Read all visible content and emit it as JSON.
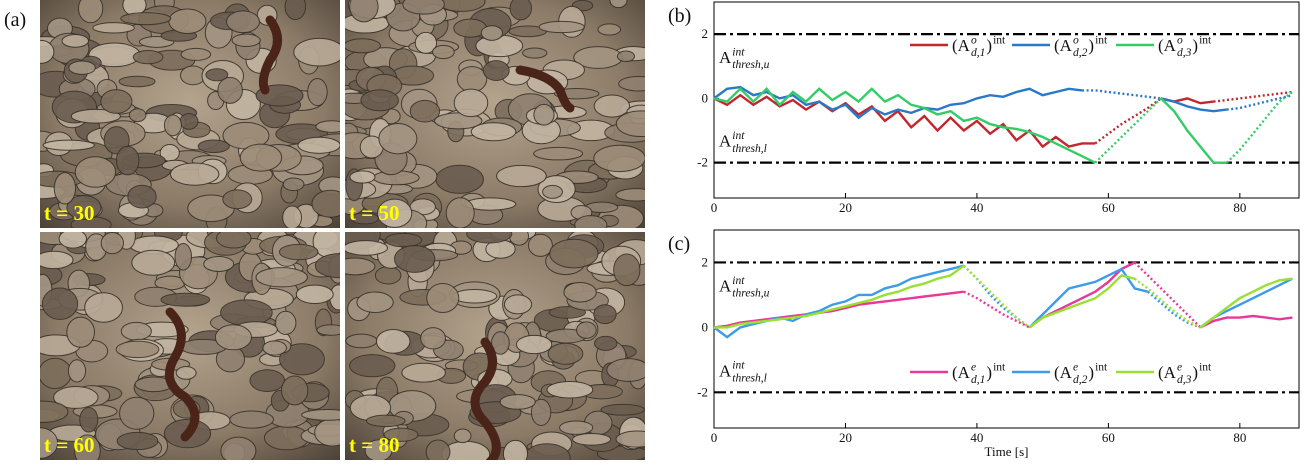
{
  "figure": {
    "label": "(a)",
    "frames": [
      "t = 30",
      "t = 50",
      "t = 60",
      "t = 80"
    ]
  },
  "chart_data": [
    {
      "type": "line",
      "panel": "(b)",
      "legend": "upper right",
      "xlim": [
        0,
        89
      ],
      "ylim": [
        -3.1,
        3
      ],
      "xticks": [
        0,
        20,
        40,
        60,
        80
      ],
      "yticks": [
        -2,
        0,
        2
      ],
      "thresholds": [
        2,
        -2
      ],
      "annotations": [
        {
          "base": "A",
          "sup": "int",
          "sub": "thresh,u"
        },
        {
          "base": "A",
          "sup": "int",
          "sub": "thresh,l"
        }
      ],
      "x": [
        0,
        2,
        4,
        6,
        8,
        10,
        12,
        14,
        16,
        18,
        20,
        22,
        24,
        26,
        28,
        30,
        32,
        34,
        36,
        38,
        40,
        42,
        44,
        46,
        48,
        50,
        52,
        54,
        56,
        58,
        60,
        62,
        64,
        66,
        68,
        70,
        72,
        74,
        76,
        78,
        80,
        82,
        84,
        86,
        88
      ],
      "series": [
        {
          "name": [
            "(A",
            "o",
            "d,1",
            ")",
            "int"
          ],
          "color": "#c1272d",
          "values": [
            0,
            -0.2,
            0.1,
            -0.2,
            0.05,
            -0.25,
            -0.05,
            -0.35,
            -0.1,
            -0.4,
            -0.15,
            -0.5,
            -0.25,
            -0.7,
            -0.4,
            -0.9,
            -0.55,
            -1.0,
            -0.6,
            -1.0,
            -0.7,
            -1.1,
            -0.8,
            -1.3,
            -1.0,
            -1.5,
            -1.2,
            -1.5,
            -1.4,
            -1.4,
            null,
            null,
            null,
            null,
            0,
            -0.1,
            0,
            -0.15,
            -0.1,
            null,
            null,
            null,
            null,
            null,
            null
          ],
          "interp_values": [
            null,
            null,
            null,
            null,
            null,
            null,
            null,
            null,
            null,
            null,
            null,
            null,
            null,
            null,
            null,
            null,
            null,
            null,
            null,
            null,
            null,
            null,
            null,
            null,
            null,
            null,
            null,
            null,
            null,
            -1.4,
            -1.1,
            -0.8,
            -0.55,
            -0.3,
            0,
            null,
            null,
            null,
            -0.1,
            -0.05,
            0,
            0.05,
            0.1,
            0.15,
            0.2
          ]
        },
        {
          "name": [
            "(A",
            "o",
            "d,2",
            ")",
            "int"
          ],
          "color": "#2a78c8",
          "values": [
            0,
            0.3,
            0.35,
            0.1,
            0.2,
            0,
            0.1,
            -0.2,
            -0.1,
            -0.35,
            -0.2,
            -0.6,
            -0.3,
            -0.5,
            -0.35,
            -0.45,
            -0.3,
            -0.35,
            -0.2,
            -0.15,
            0,
            0.1,
            0.05,
            0.2,
            0.3,
            0.1,
            0.2,
            0.3,
            0.25,
            null,
            null,
            null,
            null,
            null,
            0,
            -0.1,
            -0.25,
            -0.35,
            -0.4,
            -0.35,
            null,
            null,
            null,
            null,
            null
          ],
          "interp_values": [
            null,
            null,
            null,
            null,
            null,
            null,
            null,
            null,
            null,
            null,
            null,
            null,
            null,
            null,
            null,
            null,
            null,
            null,
            null,
            null,
            null,
            null,
            null,
            null,
            null,
            null,
            null,
            null,
            0.25,
            0.25,
            0.2,
            0.15,
            0.1,
            0.05,
            0,
            null,
            null,
            null,
            null,
            -0.35,
            -0.3,
            -0.2,
            -0.1,
            0,
            0.1
          ]
        },
        {
          "name": [
            "(A",
            "o",
            "d,3",
            ")",
            "int"
          ],
          "color": "#33cc66",
          "values": [
            0,
            -0.1,
            0.3,
            -0.1,
            0.3,
            -0.2,
            0.2,
            -0.1,
            0.3,
            -0.05,
            0.2,
            -0.1,
            0.3,
            -0.1,
            0.1,
            -0.2,
            -0.3,
            -0.5,
            -0.4,
            -0.7,
            -0.6,
            -0.8,
            -0.9,
            -0.95,
            -1.05,
            -1.2,
            -1.4,
            -1.6,
            -1.8,
            -2.0,
            null,
            null,
            null,
            null,
            0,
            -0.4,
            -1.0,
            -1.5,
            -2.0,
            -2.0,
            null,
            null,
            null,
            null,
            null
          ],
          "interp_values": [
            null,
            null,
            null,
            null,
            null,
            null,
            null,
            null,
            null,
            null,
            null,
            null,
            null,
            null,
            null,
            null,
            null,
            null,
            null,
            null,
            null,
            null,
            null,
            null,
            null,
            null,
            null,
            null,
            null,
            -2.0,
            -1.6,
            -1.2,
            -0.8,
            -0.4,
            0,
            null,
            null,
            null,
            null,
            -2.0,
            -1.6,
            -1.1,
            -0.6,
            -0.1,
            0.2
          ]
        }
      ]
    },
    {
      "type": "line",
      "panel": "(c)",
      "legend": "lower right",
      "xlabel": "Time [s]",
      "xlim": [
        0,
        89
      ],
      "ylim": [
        -3.1,
        3
      ],
      "xticks": [
        0,
        20,
        40,
        60,
        80
      ],
      "yticks": [
        -2,
        0,
        2
      ],
      "thresholds": [
        2,
        -2
      ],
      "annotations": [
        {
          "base": "A",
          "sup": "int",
          "sub": "thresh,u"
        },
        {
          "base": "A",
          "sup": "int",
          "sub": "thresh,l"
        }
      ],
      "x": [
        0,
        2,
        4,
        6,
        8,
        10,
        12,
        14,
        16,
        18,
        20,
        22,
        24,
        26,
        28,
        30,
        32,
        34,
        36,
        38,
        40,
        42,
        44,
        46,
        48,
        50,
        52,
        54,
        56,
        58,
        60,
        62,
        64,
        66,
        68,
        70,
        72,
        74,
        76,
        78,
        80,
        82,
        84,
        86,
        88
      ],
      "series": [
        {
          "name": [
            "(A",
            "e",
            "d,1",
            ")",
            "int"
          ],
          "color": "#e8399a",
          "values": [
            0,
            0.05,
            0.15,
            0.2,
            0.25,
            0.3,
            0.35,
            0.4,
            0.45,
            0.5,
            0.6,
            0.7,
            0.75,
            0.8,
            0.85,
            0.9,
            0.95,
            1.0,
            1.05,
            1.1,
            null,
            null,
            null,
            null,
            0,
            0.3,
            0.5,
            0.7,
            0.9,
            1.1,
            1.4,
            1.8,
            2.0,
            null,
            null,
            null,
            null,
            0,
            0.2,
            0.3,
            0.3,
            0.35,
            0.3,
            0.25,
            0.3
          ],
          "interp_values": [
            null,
            null,
            null,
            null,
            null,
            null,
            null,
            null,
            null,
            null,
            null,
            null,
            null,
            null,
            null,
            null,
            null,
            null,
            null,
            1.1,
            0.9,
            0.65,
            0.4,
            0.2,
            0,
            null,
            null,
            null,
            null,
            null,
            null,
            null,
            2.0,
            1.6,
            1.2,
            0.8,
            0.4,
            0,
            null,
            null,
            null,
            null,
            null,
            null,
            null
          ]
        },
        {
          "name": [
            "(A",
            "e",
            "d,2",
            ")",
            "int"
          ],
          "color": "#3d9be9",
          "values": [
            0,
            -0.3,
            0,
            0.1,
            0.2,
            0.3,
            0.2,
            0.4,
            0.5,
            0.7,
            0.8,
            1.0,
            1.0,
            1.2,
            1.3,
            1.5,
            1.6,
            1.7,
            1.8,
            1.9,
            null,
            null,
            null,
            null,
            0,
            0.4,
            0.8,
            1.2,
            1.3,
            1.4,
            1.6,
            1.8,
            1.2,
            1.1,
            null,
            null,
            null,
            0,
            0.3,
            0.5,
            0.7,
            0.9,
            1.1,
            1.3,
            1.5
          ],
          "interp_values": [
            null,
            null,
            null,
            null,
            null,
            null,
            null,
            null,
            null,
            null,
            null,
            null,
            null,
            null,
            null,
            null,
            null,
            null,
            null,
            1.9,
            1.5,
            1.0,
            0.6,
            0.3,
            0,
            null,
            null,
            null,
            null,
            null,
            null,
            null,
            null,
            1.1,
            0.75,
            0.4,
            0.15,
            0,
            null,
            null,
            null,
            null,
            null,
            null,
            null
          ]
        },
        {
          "name": [
            "(A",
            "e",
            "d,3",
            ")",
            "int"
          ],
          "color": "#99e033",
          "values": [
            0,
            0,
            0.1,
            0.15,
            0.2,
            0.25,
            0.3,
            0.35,
            0.45,
            0.55,
            0.65,
            0.75,
            0.85,
            1.0,
            1.1,
            1.25,
            1.35,
            1.5,
            1.6,
            1.9,
            null,
            null,
            null,
            null,
            0,
            0.3,
            0.45,
            0.6,
            0.75,
            0.9,
            1.2,
            1.6,
            1.5,
            null,
            null,
            null,
            null,
            0,
            0.3,
            0.6,
            0.9,
            1.1,
            1.3,
            1.45,
            1.5
          ],
          "interp_values": [
            null,
            null,
            null,
            null,
            null,
            null,
            null,
            null,
            null,
            null,
            null,
            null,
            null,
            null,
            null,
            null,
            null,
            null,
            null,
            1.9,
            1.5,
            1.1,
            0.7,
            0.3,
            0,
            null,
            null,
            null,
            null,
            null,
            null,
            null,
            1.5,
            1.2,
            0.85,
            0.5,
            0.2,
            0,
            null,
            null,
            null,
            null,
            null,
            null,
            null
          ]
        }
      ]
    }
  ]
}
